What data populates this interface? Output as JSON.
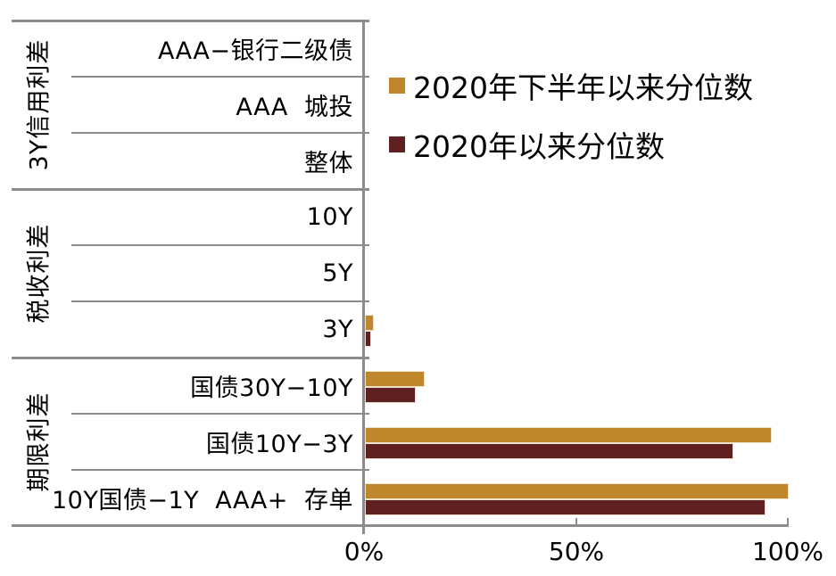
{
  "chart_data": {
    "type": "bar",
    "orientation": "horizontal",
    "title": "",
    "categories": [
      "AAA−银行二级债",
      "AAA  城投",
      "整体",
      "10Y",
      "5Y",
      "3Y",
      "国债30Y−10Y",
      "国债10Y−3Y",
      "10Y国债−1Y  AAA+  存单"
    ],
    "category_groups": [
      {
        "label": "3Y信用利差",
        "categories": [
          "AAA−银行二级债",
          "AAA  城投",
          "整体"
        ]
      },
      {
        "label": "税收利差",
        "categories": [
          "10Y",
          "5Y",
          "3Y"
        ]
      },
      {
        "label": "期限利差",
        "categories": [
          "国债30Y−10Y",
          "国债10Y−3Y",
          "10Y国债−1Y  AAA+  存单"
        ]
      }
    ],
    "series": [
      {
        "name": "2020年下半年以来分位数",
        "color": "#C0862C",
        "values": [
          0,
          0,
          0,
          0,
          0,
          2,
          14,
          96,
          100
        ]
      },
      {
        "name": "2020年以来分位数",
        "color": "#5F2021",
        "values": [
          0,
          0,
          0,
          0,
          0,
          1.5,
          12,
          87,
          94.5
        ]
      }
    ],
    "x_axis": {
      "tick_labels": [
        "0%",
        "50%",
        "100%"
      ],
      "tick_values": [
        0,
        50,
        100
      ],
      "min": 0,
      "max": 100,
      "unit": "%"
    },
    "legend_position": "top-right",
    "grid": "category-separator-lines",
    "line_color": "#8C8C8C"
  }
}
